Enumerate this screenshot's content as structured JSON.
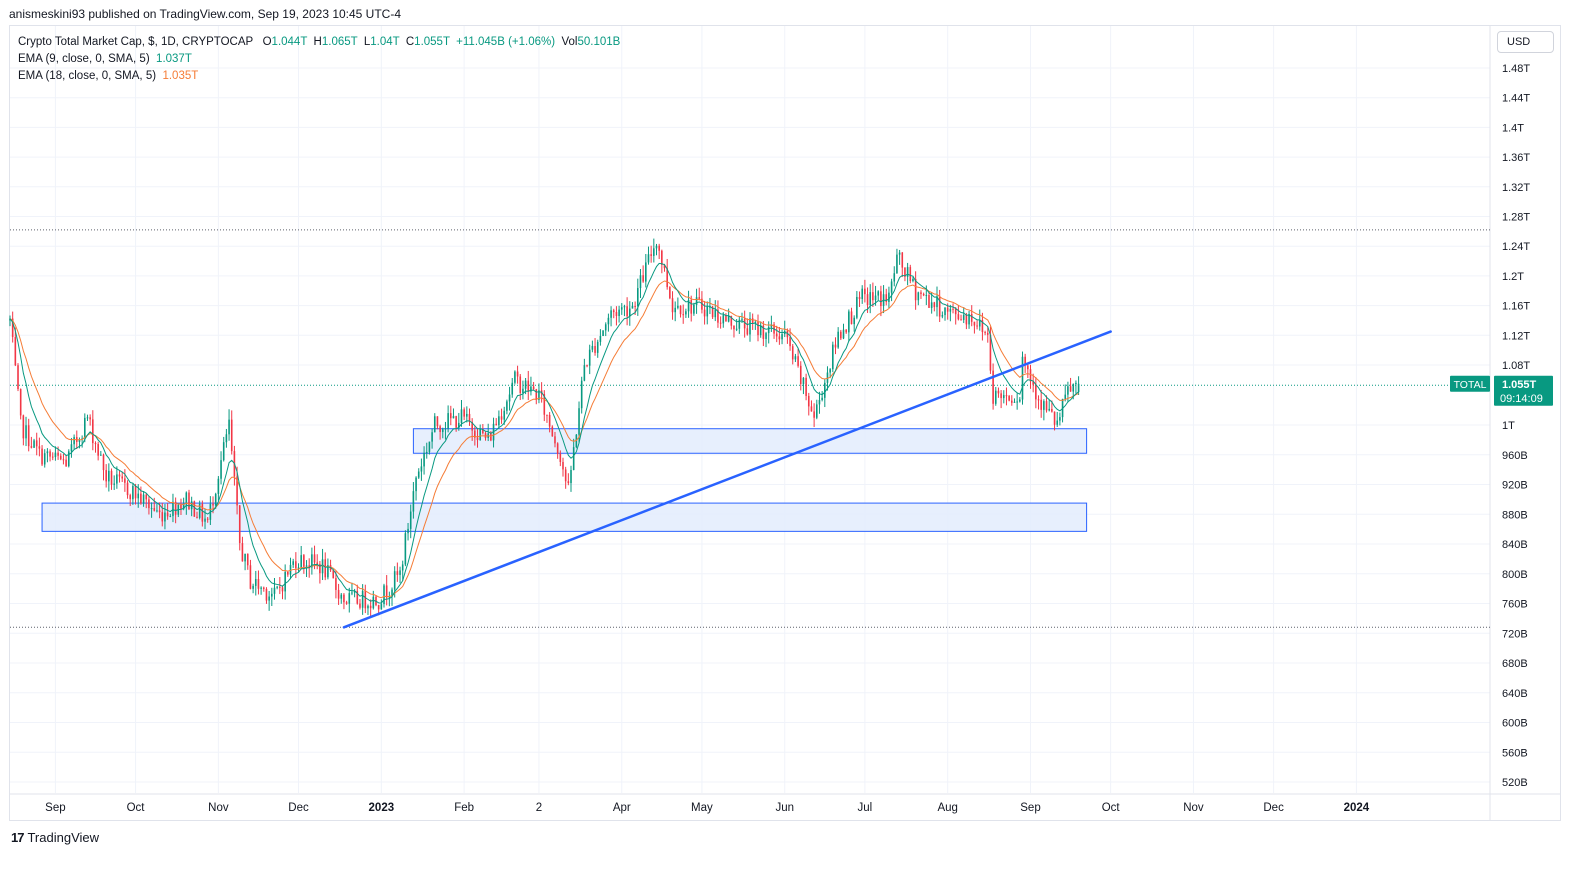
{
  "header": {
    "published": "anismeskini93 published on TradingView.com, Sep 19, 2023 10:45 UTC-4"
  },
  "legend": {
    "symbol": "Crypto Total Market Cap, $, 1D, CRYPTOCAP",
    "o_label": "O",
    "o_value": "1.044T",
    "h_label": "H",
    "h_value": "1.065T",
    "l_label": "L",
    "l_value": "1.04T",
    "c_label": "C",
    "c_value": "1.055T",
    "change": "+11.045B (+1.06%)",
    "vol_label": "Vol",
    "vol_value": "50.101B",
    "ema1_label": "EMA (9, close, 0, SMA, 5)",
    "ema1_value": "1.037T",
    "ema2_label": "EMA (18, close, 0, SMA, 5)",
    "ema2_value": "1.035T"
  },
  "currency": "USD",
  "price_tag": {
    "symbol": "TOTAL",
    "value": "1.055T",
    "countdown": "09:14:09"
  },
  "footer": {
    "logo": "17",
    "brand": "TradingView"
  },
  "colors": {
    "up": "#089981",
    "down": "#f23645",
    "ema9": "#089981",
    "ema18": "#f57c36",
    "trendline": "#2962ff",
    "zone_fill": "#e3ecfd",
    "zone_stroke": "#2962ff",
    "tag_bg": "#089981"
  },
  "chart_data": {
    "type": "candlestick",
    "y_axis": {
      "ticks": [
        "1.48T",
        "1.44T",
        "1.4T",
        "1.36T",
        "1.32T",
        "1.28T",
        "1.24T",
        "1.2T",
        "1.16T",
        "1.12T",
        "1.08T",
        "1T",
        "960B",
        "920B",
        "880B",
        "840B",
        "800B",
        "760B",
        "720B",
        "680B",
        "640B",
        "600B",
        "560B",
        "520B"
      ],
      "tick_values": [
        1480,
        1440,
        1400,
        1360,
        1320,
        1280,
        1240,
        1200,
        1160,
        1120,
        1080,
        1000,
        960,
        920,
        880,
        840,
        800,
        760,
        720,
        680,
        640,
        600,
        560,
        520
      ],
      "unit": "B",
      "range": [
        490,
        1520
      ]
    },
    "x_axis": {
      "labels": [
        "Sep",
        "Oct",
        "Nov",
        "Dec",
        "2023",
        "Feb",
        "2",
        "Apr",
        "May",
        "Jun",
        "Jul",
        "Aug",
        "Sep",
        "Oct",
        "Nov",
        "Dec",
        "2024"
      ],
      "label_dates": [
        "2022-09-01",
        "2022-10-01",
        "2022-11-01",
        "2022-12-01",
        "2023-01-01",
        "2023-02-01",
        "2023-03-01",
        "2023-04-01",
        "2023-05-01",
        "2023-06-01",
        "2023-07-01",
        "2023-08-01",
        "2023-09-01",
        "2023-10-01",
        "2023-11-01",
        "2023-12-01",
        "2024-01-01"
      ],
      "start": "2022-08-15",
      "end": "2024-02-20"
    },
    "close_path": [
      [
        "2022-08-15",
        1140
      ],
      [
        "2022-08-19",
        1000
      ],
      [
        "2022-08-26",
        960
      ],
      [
        "2022-09-05",
        950
      ],
      [
        "2022-09-13",
        1010
      ],
      [
        "2022-09-20",
        930
      ],
      [
        "2022-09-30",
        910
      ],
      [
        "2022-10-10",
        880
      ],
      [
        "2022-10-20",
        900
      ],
      [
        "2022-10-28",
        870
      ],
      [
        "2022-11-05",
        1000
      ],
      [
        "2022-11-09",
        840
      ],
      [
        "2022-11-13",
        790
      ],
      [
        "2022-11-22",
        770
      ],
      [
        "2022-11-30",
        820
      ],
      [
        "2022-12-10",
        810
      ],
      [
        "2022-12-18",
        765
      ],
      [
        "2022-12-31",
        765
      ],
      [
        "2023-01-08",
        800
      ],
      [
        "2023-01-14",
        930
      ],
      [
        "2023-01-21",
        1000
      ],
      [
        "2023-01-31",
        1010
      ],
      [
        "2023-02-10",
        980
      ],
      [
        "2023-02-20",
        1060
      ],
      [
        "2023-03-01",
        1040
      ],
      [
        "2023-03-09",
        960
      ],
      [
        "2023-03-12",
        910
      ],
      [
        "2023-03-18",
        1080
      ],
      [
        "2023-03-28",
        1150
      ],
      [
        "2023-04-05",
        1160
      ],
      [
        "2023-04-14",
        1250
      ],
      [
        "2023-04-20",
        1160
      ],
      [
        "2023-05-01",
        1160
      ],
      [
        "2023-05-10",
        1140
      ],
      [
        "2023-05-20",
        1130
      ],
      [
        "2023-06-01",
        1120
      ],
      [
        "2023-06-05",
        1080
      ],
      [
        "2023-06-12",
        1010
      ],
      [
        "2023-06-21",
        1120
      ],
      [
        "2023-06-30",
        1170
      ],
      [
        "2023-07-10",
        1170
      ],
      [
        "2023-07-13",
        1225
      ],
      [
        "2023-07-20",
        1180
      ],
      [
        "2023-08-01",
        1150
      ],
      [
        "2023-08-10",
        1145
      ],
      [
        "2023-08-16",
        1120
      ],
      [
        "2023-08-18",
        1040
      ],
      [
        "2023-08-28",
        1040
      ],
      [
        "2023-08-29",
        1090
      ],
      [
        "2023-09-05",
        1030
      ],
      [
        "2023-09-11",
        1000
      ],
      [
        "2023-09-15",
        1045
      ],
      [
        "2023-09-19",
        1055
      ]
    ],
    "ema_9": {
      "name": "EMA (9, close, 0, SMA, 5)",
      "last": 1037
    },
    "ema_18": {
      "name": "EMA (18, close, 0, SMA, 5)",
      "last": 1035
    },
    "annotations": {
      "trendline": {
        "from": [
          "2022-12-18",
          728
        ],
        "to": [
          "2023-10-01",
          1125
        ]
      },
      "zones": [
        {
          "from": "2023-01-13",
          "to": "2023-09-22",
          "top": 995,
          "bottom": 962
        },
        {
          "from": "2022-08-27",
          "to": "2023-09-22",
          "top": 895,
          "bottom": 857
        }
      ],
      "hlines": [
        1262,
        1053,
        728
      ],
      "last_price": 1055
    }
  }
}
